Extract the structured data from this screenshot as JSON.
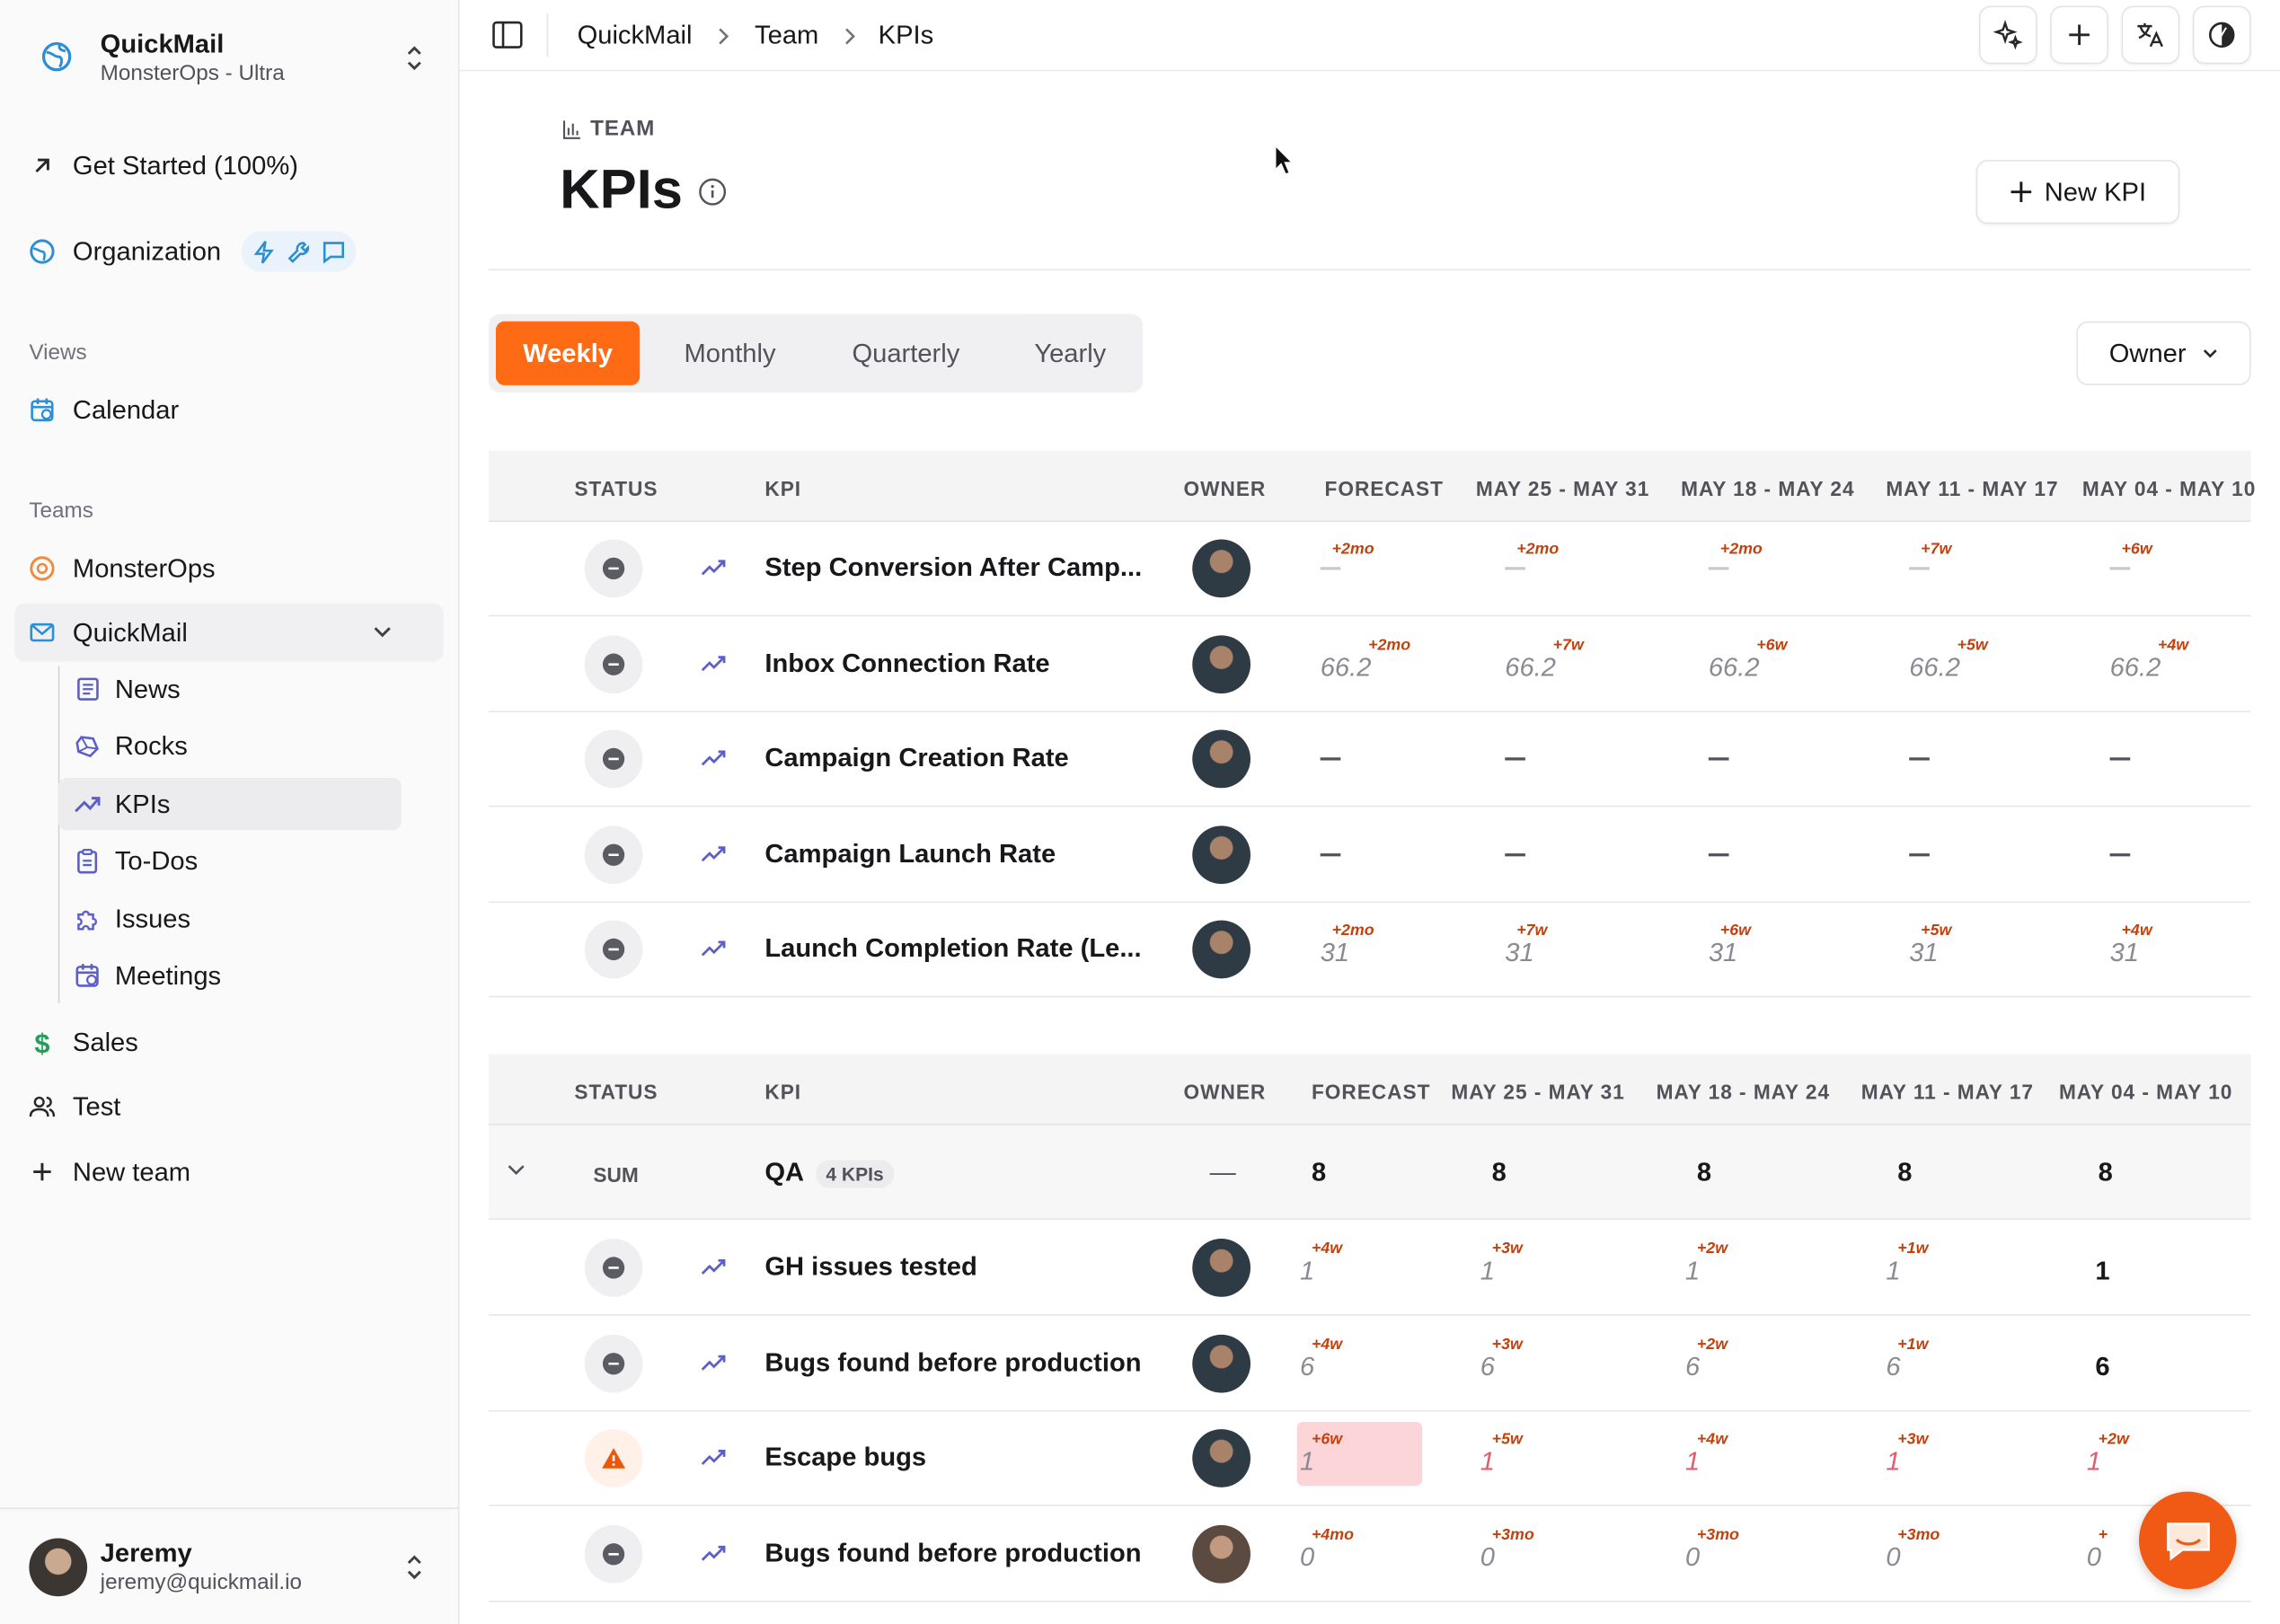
{
  "workspace": {
    "name": "QuickMail",
    "plan": "MonsterOps - Ultra"
  },
  "sidebar": {
    "get_started": "Get Started (100%)",
    "organization": "Organization",
    "views_label": "Views",
    "calendar": "Calendar",
    "teams_label": "Teams",
    "teams": [
      "MonsterOps",
      "QuickMail",
      "Sales",
      "Test"
    ],
    "quickmail_items": [
      "News",
      "Rocks",
      "KPIs",
      "To-Dos",
      "Issues",
      "Meetings"
    ],
    "new_team": "New team"
  },
  "user": {
    "name": "Jeremy",
    "email": "jeremy@quickmail.io"
  },
  "breadcrumb": [
    "QuickMail",
    "Team",
    "KPIs"
  ],
  "header": {
    "eyebrow": "TEAM",
    "title": "KPIs",
    "new_kpi": "New KPI"
  },
  "periods": [
    "Weekly",
    "Monthly",
    "Quarterly",
    "Yearly"
  ],
  "active_period": "Weekly",
  "owner_filter": "Owner",
  "table1": {
    "headers": [
      "STATUS",
      "KPI",
      "OWNER",
      "FORECAST",
      "MAY 25 - MAY 31",
      "MAY 18 - MAY 24",
      "MAY 11 - MAY 17",
      "MAY 04 - MAY 10"
    ],
    "rows": [
      {
        "name": "Step Conversion After Camp...",
        "values": [
          "",
          "",
          "",
          "",
          ""
        ],
        "tags": [
          "+2mo",
          "+2mo",
          "+2mo",
          "+7w",
          "+6w"
        ]
      },
      {
        "name": "Inbox Connection Rate",
        "values": [
          "66.2",
          "66.2",
          "66.2",
          "66.2",
          "66.2"
        ],
        "tags": [
          "+2mo",
          "+7w",
          "+6w",
          "+5w",
          "+4w"
        ]
      },
      {
        "name": "Campaign Creation Rate",
        "values": [
          "",
          "",
          "",
          "",
          ""
        ],
        "tags": [
          "",
          "",
          "",
          "",
          ""
        ]
      },
      {
        "name": "Campaign Launch Rate",
        "values": [
          "",
          "",
          "",
          "",
          ""
        ],
        "tags": [
          "",
          "",
          "",
          "",
          ""
        ]
      },
      {
        "name": "Launch Completion Rate (Le...",
        "values": [
          "31",
          "31",
          "31",
          "31",
          "31"
        ],
        "tags": [
          "+2mo",
          "+7w",
          "+6w",
          "+5w",
          "+4w"
        ]
      }
    ]
  },
  "table2": {
    "headers": [
      "STATUS",
      "KPI",
      "OWNER",
      "FORECAST",
      "MAY 25 - MAY 31",
      "MAY 18 - MAY 24",
      "MAY 11 - MAY 17",
      "MAY 04 - MAY 10"
    ],
    "group": {
      "agg": "SUM",
      "name": "QA",
      "count": "4 KPIs",
      "owner": "—",
      "values": [
        "8",
        "8",
        "8",
        "8",
        "8"
      ]
    },
    "rows": [
      {
        "name": "GH issues tested",
        "values": [
          "1",
          "1",
          "1",
          "1",
          "1"
        ],
        "tags": [
          "+4w",
          "+3w",
          "+2w",
          "+1w",
          ""
        ]
      },
      {
        "name": "Bugs found before production",
        "values": [
          "6",
          "6",
          "6",
          "6",
          "6"
        ],
        "tags": [
          "+4w",
          "+3w",
          "+2w",
          "+1w",
          ""
        ]
      },
      {
        "name": "Escape bugs",
        "values": [
          "1",
          "1",
          "1",
          "1",
          "1"
        ],
        "tags": [
          "+6w",
          "+5w",
          "+4w",
          "+3w",
          "+2w"
        ]
      },
      {
        "name": "Bugs found before production",
        "values": [
          "0",
          "0",
          "0",
          "0",
          "0"
        ],
        "tags": [
          "+4mo",
          "+3mo",
          "+3mo",
          "+3mo",
          "+"
        ]
      }
    ]
  },
  "colors": {
    "accent": "#ff6a14",
    "link": "#2b8fd6",
    "warn": "#ea580c"
  }
}
